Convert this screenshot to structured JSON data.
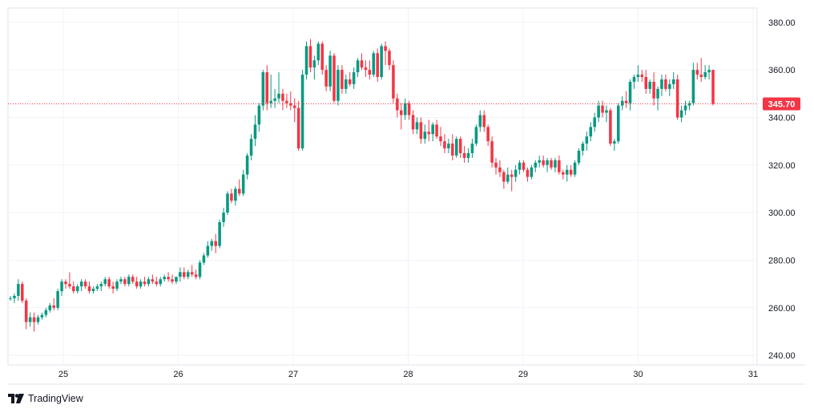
{
  "chart_data": {
    "type": "candlestick",
    "instrument_price_scale": {
      "ylim": [
        236,
        386
      ],
      "ticks": [
        "240.00",
        "260.00",
        "280.00",
        "300.00",
        "320.00",
        "340.00",
        "360.00",
        "380.00"
      ]
    },
    "x_ticks": [
      "25",
      "26",
      "27",
      "28",
      "29",
      "30",
      "31"
    ],
    "last_price": "345.70",
    "colors": {
      "up": "#089981",
      "down": "#f23645",
      "grid": "#f0f3fa",
      "price_line": "#f23645"
    },
    "grid": true,
    "candles": [
      [
        264,
        265,
        263,
        264
      ],
      [
        264,
        266,
        262,
        265
      ],
      [
        265,
        272,
        263,
        270
      ],
      [
        270,
        271,
        262,
        263
      ],
      [
        263,
        264,
        251,
        254
      ],
      [
        254,
        258,
        252,
        256
      ],
      [
        256,
        258,
        250,
        254
      ],
      [
        254,
        257,
        253,
        256
      ],
      [
        256,
        258,
        255,
        257
      ],
      [
        257,
        260,
        256,
        259
      ],
      [
        259,
        262,
        258,
        261
      ],
      [
        261,
        264,
        259,
        260
      ],
      [
        260,
        268,
        259,
        267
      ],
      [
        267,
        272,
        265,
        271
      ],
      [
        271,
        272,
        268,
        270
      ],
      [
        270,
        275,
        268,
        269
      ],
      [
        269,
        271,
        266,
        267
      ],
      [
        267,
        270,
        266,
        269
      ],
      [
        269,
        272,
        267,
        271
      ],
      [
        271,
        272,
        268,
        269
      ],
      [
        269,
        271,
        266,
        267
      ],
      [
        267,
        269,
        266,
        268
      ],
      [
        268,
        270,
        267,
        269
      ],
      [
        269,
        271,
        267,
        270
      ],
      [
        270,
        273,
        269,
        272
      ],
      [
        272,
        273,
        268,
        269
      ],
      [
        269,
        271,
        266,
        268
      ],
      [
        268,
        272,
        267,
        271
      ],
      [
        271,
        273,
        270,
        272
      ],
      [
        272,
        273,
        269,
        270
      ],
      [
        270,
        274,
        269,
        273
      ],
      [
        273,
        274,
        270,
        271
      ],
      [
        271,
        273,
        268,
        269
      ],
      [
        269,
        272,
        268,
        271
      ],
      [
        271,
        273,
        269,
        270
      ],
      [
        270,
        273,
        269,
        272
      ],
      [
        272,
        274,
        270,
        271
      ],
      [
        271,
        273,
        269,
        270
      ],
      [
        270,
        273,
        269,
        272
      ],
      [
        272,
        274,
        271,
        273
      ],
      [
        273,
        275,
        271,
        272
      ],
      [
        272,
        274,
        270,
        271
      ],
      [
        271,
        273,
        270,
        273
      ],
      [
        273,
        277,
        271,
        275
      ],
      [
        275,
        277,
        272,
        273
      ],
      [
        273,
        276,
        272,
        275
      ],
      [
        275,
        278,
        273,
        274
      ],
      [
        274,
        276,
        272,
        273
      ],
      [
        273,
        280,
        272,
        279
      ],
      [
        279,
        283,
        278,
        282
      ],
      [
        282,
        288,
        281,
        286
      ],
      [
        286,
        289,
        284,
        288
      ],
      [
        288,
        291,
        283,
        286
      ],
      [
        286,
        297,
        285,
        296
      ],
      [
        296,
        302,
        294,
        300
      ],
      [
        300,
        309,
        299,
        308
      ],
      [
        308,
        310,
        304,
        305
      ],
      [
        305,
        311,
        303,
        310
      ],
      [
        310,
        314,
        307,
        308
      ],
      [
        308,
        318,
        307,
        316
      ],
      [
        316,
        325,
        314,
        324
      ],
      [
        324,
        333,
        322,
        331
      ],
      [
        331,
        341,
        328,
        337
      ],
      [
        337,
        346,
        334,
        345
      ],
      [
        345,
        360,
        343,
        359
      ],
      [
        359,
        362,
        343,
        346
      ],
      [
        346,
        358,
        344,
        347
      ],
      [
        347,
        352,
        344,
        348
      ],
      [
        348,
        359,
        346,
        350
      ],
      [
        350,
        352,
        343,
        347
      ],
      [
        347,
        350,
        344,
        346
      ],
      [
        346,
        351,
        343,
        345
      ],
      [
        345,
        348,
        338,
        344
      ],
      [
        344,
        347,
        326,
        327
      ],
      [
        327,
        360,
        326,
        358
      ],
      [
        358,
        372,
        356,
        370
      ],
      [
        370,
        373,
        359,
        361
      ],
      [
        361,
        366,
        356,
        364
      ],
      [
        364,
        372,
        362,
        371
      ],
      [
        371,
        372,
        358,
        360
      ],
      [
        360,
        362,
        351,
        353
      ],
      [
        353,
        368,
        351,
        366
      ],
      [
        366,
        367,
        346,
        347
      ],
      [
        347,
        362,
        345,
        360
      ],
      [
        360,
        362,
        350,
        352
      ],
      [
        352,
        358,
        350,
        356
      ],
      [
        356,
        359,
        353,
        354
      ],
      [
        354,
        361,
        352,
        359
      ],
      [
        359,
        365,
        357,
        364
      ],
      [
        364,
        367,
        360,
        361
      ],
      [
        361,
        364,
        357,
        360
      ],
      [
        360,
        364,
        356,
        358
      ],
      [
        358,
        368,
        357,
        367
      ],
      [
        367,
        369,
        355,
        357
      ],
      [
        357,
        371,
        356,
        370
      ],
      [
        370,
        372,
        362,
        368
      ],
      [
        368,
        369,
        360,
        362
      ],
      [
        362,
        364,
        346,
        348
      ],
      [
        348,
        350,
        340,
        343
      ],
      [
        343,
        346,
        335,
        341
      ],
      [
        341,
        348,
        339,
        346
      ],
      [
        346,
        347,
        339,
        341
      ],
      [
        341,
        343,
        333,
        335
      ],
      [
        335,
        340,
        333,
        338
      ],
      [
        338,
        340,
        329,
        331
      ],
      [
        331,
        337,
        329,
        334
      ],
      [
        334,
        339,
        330,
        333
      ],
      [
        333,
        338,
        330,
        337
      ],
      [
        337,
        339,
        331,
        332
      ],
      [
        332,
        336,
        328,
        330
      ],
      [
        330,
        333,
        325,
        327
      ],
      [
        327,
        331,
        325,
        329
      ],
      [
        329,
        333,
        322,
        324
      ],
      [
        324,
        332,
        323,
        331
      ],
      [
        331,
        332,
        323,
        325
      ],
      [
        325,
        328,
        321,
        323
      ],
      [
        323,
        327,
        321,
        325
      ],
      [
        325,
        331,
        323,
        329
      ],
      [
        329,
        337,
        328,
        336
      ],
      [
        336,
        343,
        334,
        341
      ],
      [
        341,
        343,
        334,
        336
      ],
      [
        336,
        337,
        328,
        330
      ],
      [
        330,
        332,
        319,
        321
      ],
      [
        321,
        323,
        316,
        319
      ],
      [
        319,
        322,
        315,
        317
      ],
      [
        317,
        318,
        310,
        313
      ],
      [
        313,
        319,
        312,
        316
      ],
      [
        316,
        318,
        309,
        315
      ],
      [
        315,
        320,
        313,
        318
      ],
      [
        318,
        322,
        316,
        321
      ],
      [
        321,
        322,
        317,
        318
      ],
      [
        318,
        319,
        313,
        315
      ],
      [
        315,
        320,
        314,
        319
      ],
      [
        319,
        322,
        317,
        321
      ],
      [
        321,
        324,
        319,
        322
      ],
      [
        322,
        324,
        319,
        320
      ],
      [
        320,
        323,
        317,
        322
      ],
      [
        322,
        323,
        318,
        319
      ],
      [
        319,
        323,
        317,
        322
      ],
      [
        322,
        324,
        316,
        317
      ],
      [
        317,
        318,
        314,
        316
      ],
      [
        316,
        320,
        313,
        318
      ],
      [
        318,
        320,
        315,
        316
      ],
      [
        316,
        322,
        315,
        321
      ],
      [
        321,
        327,
        320,
        326
      ],
      [
        326,
        330,
        324,
        329
      ],
      [
        329,
        334,
        326,
        332
      ],
      [
        332,
        338,
        330,
        336
      ],
      [
        336,
        342,
        334,
        340
      ],
      [
        340,
        347,
        338,
        345
      ],
      [
        345,
        347,
        340,
        342
      ],
      [
        342,
        345,
        338,
        343
      ],
      [
        343,
        344,
        328,
        329
      ],
      [
        329,
        331,
        326,
        330
      ],
      [
        330,
        346,
        329,
        345
      ],
      [
        345,
        349,
        343,
        347
      ],
      [
        347,
        351,
        344,
        346
      ],
      [
        346,
        356,
        343,
        355
      ],
      [
        355,
        358,
        352,
        357
      ],
      [
        357,
        362,
        355,
        358
      ],
      [
        358,
        360,
        355,
        357
      ],
      [
        357,
        360,
        350,
        352
      ],
      [
        352,
        356,
        350,
        355
      ],
      [
        355,
        359,
        345,
        348
      ],
      [
        348,
        353,
        343,
        352
      ],
      [
        352,
        358,
        349,
        356
      ],
      [
        356,
        358,
        351,
        352
      ],
      [
        352,
        356,
        349,
        354
      ],
      [
        354,
        359,
        352,
        356
      ],
      [
        356,
        358,
        339,
        340
      ],
      [
        340,
        345,
        338,
        343
      ],
      [
        343,
        347,
        341,
        345
      ],
      [
        345,
        347,
        343,
        346
      ],
      [
        346,
        363,
        345,
        360
      ],
      [
        360,
        363,
        356,
        358
      ],
      [
        358,
        365,
        355,
        357
      ],
      [
        357,
        362,
        356,
        359
      ],
      [
        359,
        362,
        356,
        360
      ],
      [
        360,
        360,
        345,
        345.7
      ]
    ]
  },
  "brand": {
    "name": "TradingView",
    "logo_icon": "tradingview-logo-icon"
  }
}
